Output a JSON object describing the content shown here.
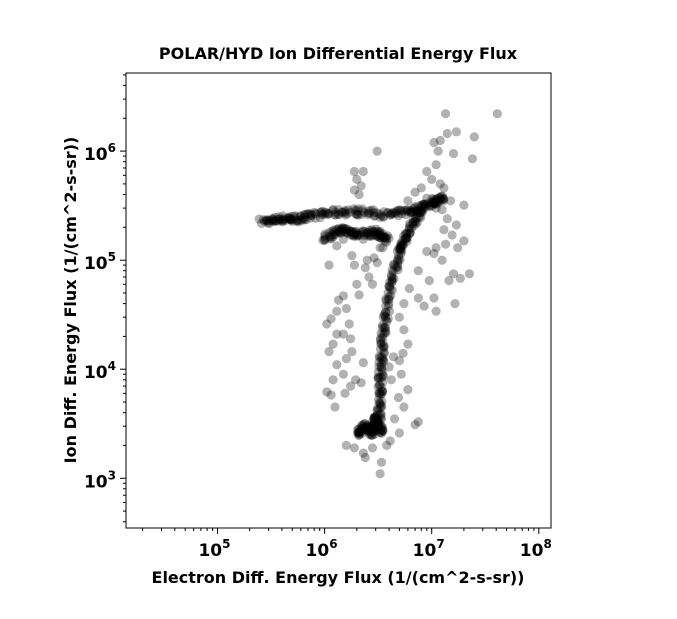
{
  "chart_data": {
    "type": "scatter",
    "title": "POLAR/HYD  Ion Differential Energy Flux",
    "xlabel": "Electron Diff. Energy Flux (1/(cm^2-s-sr))",
    "ylabel": "Ion Diff. Energy Flux (1/(cm^2-s-sr))",
    "x_scale": "log",
    "y_scale": "log",
    "xlim": [
      14000,
      130000000
    ],
    "ylim": [
      350,
      5200000
    ],
    "x_ticks": [
      {
        "value": 100000,
        "base": "10",
        "exp": "5"
      },
      {
        "value": 1000000,
        "base": "10",
        "exp": "6"
      },
      {
        "value": 10000000,
        "base": "10",
        "exp": "7"
      },
      {
        "value": 100000000,
        "base": "10",
        "exp": "8"
      }
    ],
    "y_ticks": [
      {
        "value": 1000,
        "base": "10",
        "exp": "3"
      },
      {
        "value": 10000,
        "base": "10",
        "exp": "4"
      },
      {
        "value": 100000,
        "base": "10",
        "exp": "5"
      },
      {
        "value": 1000000,
        "base": "10",
        "exp": "6"
      }
    ],
    "grid": false,
    "legend": "none",
    "marker_color": "#000000",
    "marker_opacity": 0.3,
    "points": [
      [
        41000000.0,
        2200000.0
      ],
      [
        13500000.0,
        2200000.0
      ],
      [
        17000000.0,
        1500000.0
      ],
      [
        14000000.0,
        1450000.0
      ],
      [
        25000000.0,
        1350000.0
      ],
      [
        12000000.0,
        1250000.0
      ],
      [
        10500000.0,
        1200000.0
      ],
      [
        16000000.0,
        950000.0
      ],
      [
        11500000.0,
        1000000.0
      ],
      [
        24000000.0,
        850000.0
      ],
      [
        3100000.0,
        1000000.0
      ],
      [
        11000000.0,
        750000.0
      ],
      [
        1900000.0,
        650000.0
      ],
      [
        2300000.0,
        650000.0
      ],
      [
        2000000.0,
        550000.0
      ],
      [
        2200000.0,
        480000.0
      ],
      [
        1900000.0,
        440000.0
      ],
      [
        2100000.0,
        400000.0
      ],
      [
        9000000.0,
        650000.0
      ],
      [
        10000000.0,
        550000.0
      ],
      [
        12000000.0,
        500000.0
      ],
      [
        13000000.0,
        460000.0
      ],
      [
        8000000.0,
        460000.0
      ],
      [
        7000000.0,
        420000.0
      ],
      [
        15000000.0,
        350000.0
      ],
      [
        11000000.0,
        300000.0
      ],
      [
        20000000.0,
        320000.0
      ],
      [
        12500000.0,
        290000.0
      ],
      [
        6000000.0,
        350000.0
      ],
      [
        9000000.0,
        370000.0
      ],
      [
        14000000.0,
        240000.0
      ],
      [
        15500000.0,
        170000.0
      ],
      [
        17000000.0,
        210000.0
      ],
      [
        13000000.0,
        190000.0
      ],
      [
        20000000.0,
        150000.0
      ],
      [
        11000000.0,
        130000.0
      ],
      [
        13500000.0,
        140000.0
      ],
      [
        17500000.0,
        130000.0
      ],
      [
        22500000.0,
        75000.0
      ],
      [
        18500000.0,
        68000.0
      ],
      [
        16000000.0,
        75000.0
      ],
      [
        14500000.0,
        65000.0
      ],
      [
        16500000.0,
        40000.0
      ],
      [
        10500000.0,
        115000.0
      ],
      [
        9000000.0,
        120000.0
      ],
      [
        12500000.0,
        100000.0
      ],
      [
        7500000.0,
        80000.0
      ],
      [
        9500000.0,
        65000.0
      ],
      [
        10500000.0,
        45000.0
      ],
      [
        11000000.0,
        34000.0
      ],
      [
        8500000.0,
        38000.0
      ],
      [
        7500000.0,
        45000.0
      ],
      [
        6200000.0,
        55000.0
      ],
      [
        5500000.0,
        40000.0
      ],
      [
        5000000.0,
        30000.0
      ],
      [
        5500000.0,
        23000.0
      ],
      [
        6000000.0,
        17000.0
      ],
      [
        5400000.0,
        14000.0
      ],
      [
        5000000.0,
        12000.0
      ],
      [
        4400000.0,
        13000.0
      ],
      [
        5200000.0,
        9000.0
      ],
      [
        4200000.0,
        8000.0
      ],
      [
        4000000.0,
        10500.0
      ],
      [
        6000000.0,
        6500.0
      ],
      [
        4900000.0,
        5500.0
      ],
      [
        5500000.0,
        4500.0
      ],
      [
        7500000.0,
        3300.0
      ],
      [
        7000000.0,
        3100.0
      ],
      [
        5000000.0,
        2600.0
      ],
      [
        4500000.0,
        3500.0
      ],
      [
        4100000.0,
        2200.0
      ],
      [
        3800000.0,
        2000.0
      ],
      [
        3400000.0,
        1400.0
      ],
      [
        3300000.0,
        1100.0
      ],
      [
        2800000.0,
        1900.0
      ],
      [
        2300000.0,
        1700.0
      ],
      [
        1900000.0,
        1900.0
      ],
      [
        1600000.0,
        2000.0
      ],
      [
        2400000.0,
        1550.0
      ],
      [
        1250000.0,
        4500.0
      ],
      [
        1150000.0,
        5800.0
      ],
      [
        1050000.0,
        6200.0
      ],
      [
        1200000.0,
        8000.0
      ],
      [
        1300000.0,
        11000.0
      ],
      [
        1100000.0,
        14500.0
      ],
      [
        1200000.0,
        17000.0
      ],
      [
        1300000.0,
        21000.0
      ],
      [
        1050000.0,
        26000.0
      ],
      [
        1150000.0,
        29000.0
      ],
      [
        1300000.0,
        34000.0
      ],
      [
        1500000.0,
        21000.0
      ],
      [
        1350000.0,
        43000.0
      ],
      [
        1500000.0,
        47000.0
      ],
      [
        1600000.0,
        36000.0
      ],
      [
        1700000.0,
        26000.0
      ],
      [
        1750000.0,
        19000.0
      ],
      [
        1800000.0,
        14500.0
      ],
      [
        1600000.0,
        12500.0
      ],
      [
        1500000.0,
        9000.0
      ],
      [
        1950000.0,
        8000.0
      ],
      [
        1750000.0,
        7000.0
      ],
      [
        1550000.0,
        6000.0
      ],
      [
        2300000.0,
        11500.0
      ],
      [
        2200000.0,
        7500.0
      ],
      [
        2100000.0,
        48000.0
      ],
      [
        2000000.0,
        60000.0
      ],
      [
        2400000.0,
        85000.0
      ],
      [
        2600000.0,
        70000.0
      ],
      [
        2800000.0,
        60000.0
      ],
      [
        1900000.0,
        90000.0
      ],
      [
        2500000.0,
        100000.0
      ],
      [
        2900000.0,
        105000.0
      ],
      [
        1800000.0,
        110000.0
      ],
      [
        1100000.0,
        90000.0
      ],
      [
        1300000.0,
        135000.0
      ],
      [
        1500000.0,
        155000.0
      ],
      [
        2300000.0,
        155000.0
      ],
      [
        2700000.0,
        165000.0
      ],
      [
        2000000.0,
        165000.0
      ],
      [
        3300000.0,
        130000.0
      ],
      [
        3100000.0,
        95000.0
      ],
      [
        3500000.0,
        130000.0
      ]
    ],
    "dense_paths": [
      {
        "desc": "horizontal band",
        "from": [
          260000.0,
          225000.0
        ],
        "to": [
          13000000.0,
          370000.0
        ],
        "via": [
          [
            400000.0,
            240000.0
          ],
          [
            600000.0,
            240000.0
          ],
          [
            1000000.0,
            270000.0
          ],
          [
            2000000.0,
            280000.0
          ],
          [
            4000000.0,
            260000.0
          ],
          [
            7000000.0,
            290000.0
          ],
          [
            10000000.0,
            340000.0
          ]
        ]
      },
      {
        "desc": "lower branch",
        "from": [
          1000000.0,
          160000.0
        ],
        "to": [
          4000000.0,
          150000.0
        ],
        "via": [
          [
            1400000.0,
            190000.0
          ],
          [
            2000000.0,
            175000.0
          ],
          [
            3000000.0,
            180000.0
          ]
        ]
      },
      {
        "desc": "steep branch",
        "from": [
          8000000.0,
          290000.0
        ],
        "to": [
          3200000.0,
          3000.0
        ],
        "via": [
          [
            6000000.0,
            180000.0
          ],
          [
            5000000.0,
            120000.0
          ],
          [
            4200000.0,
            60000.0
          ],
          [
            3600000.0,
            25000.0
          ],
          [
            3400000.0,
            12000.0
          ],
          [
            3300000.0,
            6000.0
          ]
        ]
      },
      {
        "desc": "low cluster",
        "from": [
          2000000.0,
          2500.0
        ],
        "to": [
          3500000.0,
          2500.0
        ],
        "via": [
          [
            2400000.0,
            3000.0
          ],
          [
            2800000.0,
            2600.0
          ],
          [
            3000000.0,
            3600.0
          ]
        ]
      }
    ]
  }
}
